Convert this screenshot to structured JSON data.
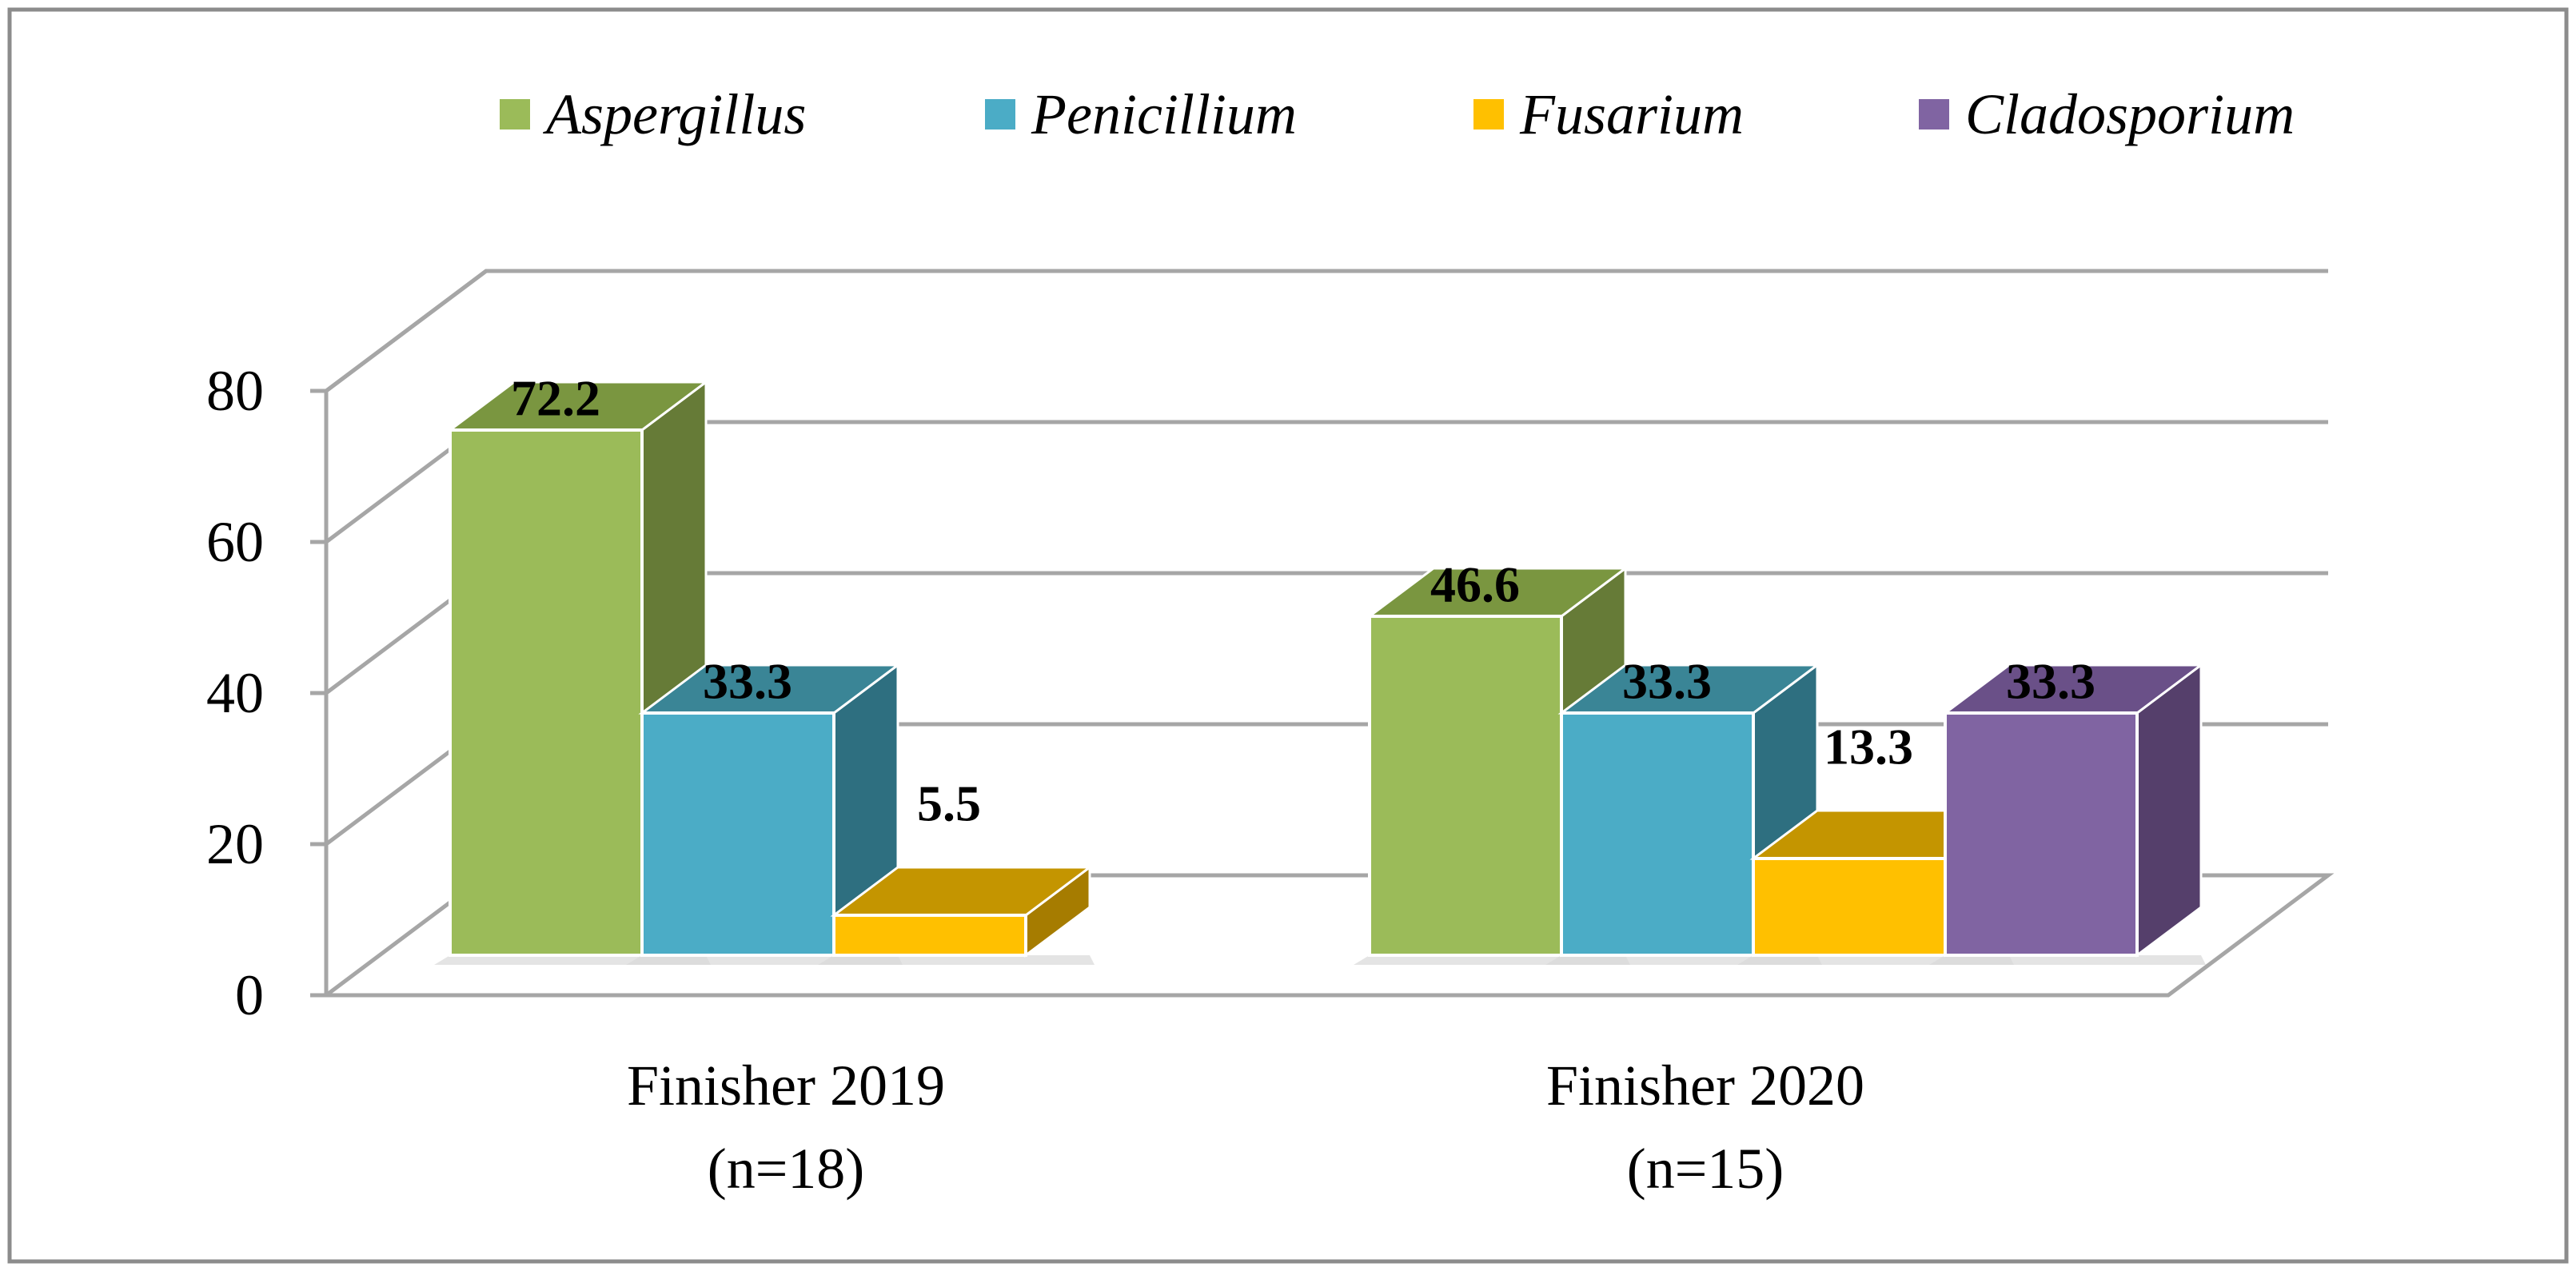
{
  "chart_data": {
    "type": "bar",
    "style": "3d-clustered",
    "title": "",
    "xlabel": "",
    "ylabel": "",
    "ylim": [
      0,
      80
    ],
    "yticks": [
      0,
      20,
      40,
      60,
      80
    ],
    "categories": [
      {
        "line1": "Finisher 2019",
        "line2": "(n=18)"
      },
      {
        "line1": "Finisher 2020",
        "line2": "(n=15)"
      }
    ],
    "series": [
      {
        "name": "Aspergillus",
        "color": "#9BBB59",
        "side": "#667B37",
        "top": "#7A9640",
        "values": [
          72.2,
          46.6
        ],
        "labels": [
          "72.2",
          "46.6"
        ]
      },
      {
        "name": "Penicillium",
        "color": "#4BACC6",
        "side": "#2E6F80",
        "top": "#3A8596",
        "values": [
          33.3,
          33.3
        ],
        "labels": [
          "33.3",
          "33.3"
        ]
      },
      {
        "name": "Fusarium",
        "color": "#FFC000",
        "side": "#A67C00",
        "top": "#C49500",
        "values": [
          5.5,
          13.3
        ],
        "labels": [
          "5.5",
          "13.3"
        ]
      },
      {
        "name": "Cladosporium",
        "color": "#8064A2",
        "side": "#553F6B",
        "top": "#6A5088",
        "values": [
          null,
          33.3
        ],
        "labels": [
          null,
          "33.3"
        ]
      }
    ],
    "legend_position": "top",
    "grid": true
  }
}
